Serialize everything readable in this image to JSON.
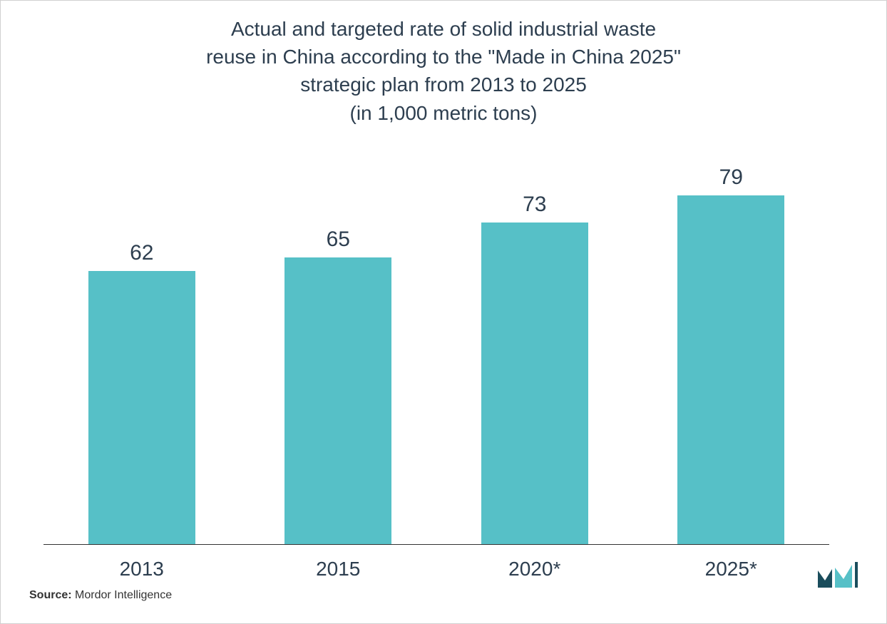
{
  "chart": {
    "type": "bar",
    "title_line1": "Actual and targeted rate of solid industrial waste",
    "title_line2": "reuse in China according to the \"Made in China 2025\"",
    "title_line3": "strategic plan from 2013 to 2025",
    "title_line4": "(in 1,000 metric tons)",
    "title_fontsize": 28,
    "title_color": "#2d3e4f",
    "categories": [
      "2013",
      "2015",
      "2020*",
      "2025*"
    ],
    "values": [
      62,
      65,
      73,
      79
    ],
    "bar_color": "#56c0c7",
    "value_label_color": "#2d3e4f",
    "value_label_fontsize": 30,
    "x_label_color": "#2d3e4f",
    "x_label_fontsize": 28,
    "axis_color": "#333333",
    "background_color": "#ffffff",
    "ylim_max": 79,
    "bar_width_ratio": 0.62
  },
  "source": {
    "label": "Source:",
    "value": "Mordor Intelligence"
  },
  "logo": {
    "name": "mordor-intelligence-logo",
    "primary_color": "#1a4d5c",
    "secondary_color": "#56c0c7"
  }
}
